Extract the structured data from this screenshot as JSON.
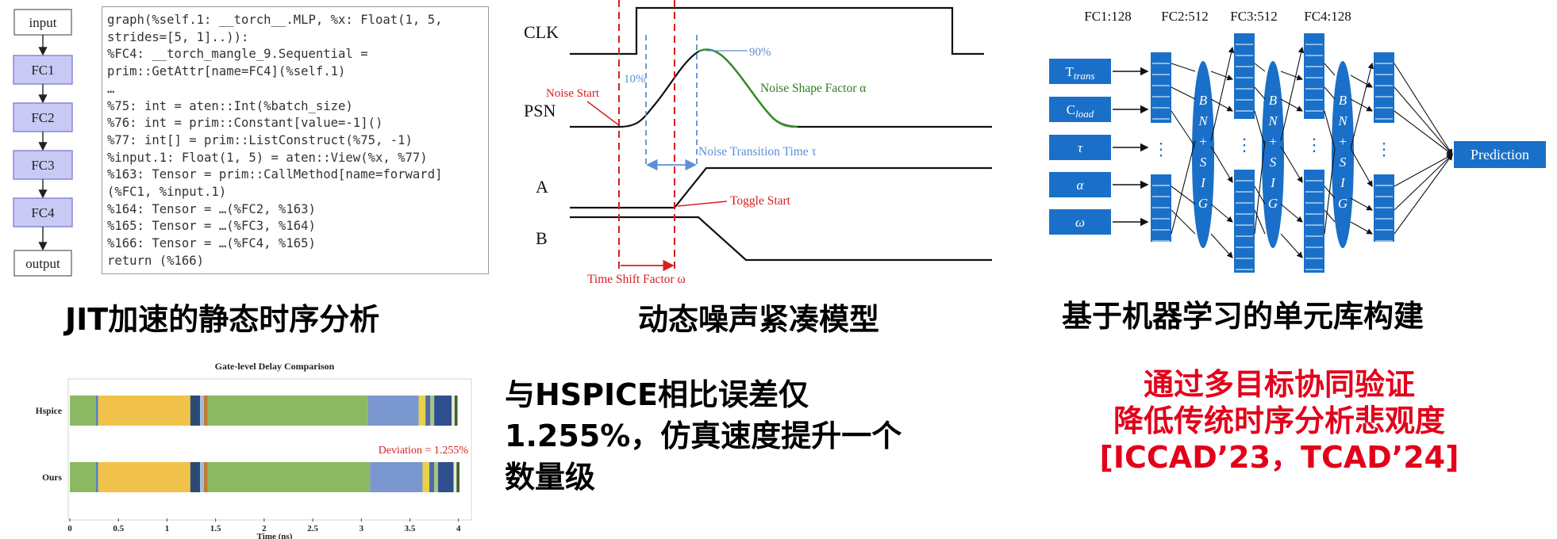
{
  "panel_jit": {
    "flow": [
      "input",
      "FC1",
      "FC2",
      "FC3",
      "FC4",
      "output"
    ],
    "code_lines": [
      "graph(%self.1: __torch__.MLP, %x: Float(1, 5,",
      "strides=[5, 1]..)):",
      "%FC4: __torch_mangle_9.Sequential =",
      "prim::GetAttr[name=FC4](%self.1)",
      "…",
      "%75: int = aten::Int(%batch_size)",
      "%76: int = prim::Constant[value=-1]()",
      "%77: int[] = prim::ListConstruct(%75, -1)",
      "%input.1: Float(1, 5) = aten::View(%x, %77)",
      "%163: Tensor = prim::CallMethod[name=forward]",
      "(%FC1, %input.1)",
      "%164: Tensor = …(%FC2, %163)",
      "%165: Tensor = …(%FC3, %164)",
      "%166: Tensor = …(%FC4, %165)",
      "return (%166)"
    ],
    "caption": "JIT加速的静态时序分析"
  },
  "panel_noise": {
    "labels": {
      "clk": "CLK",
      "psn": "PSN",
      "a": "A",
      "b": "B",
      "noise_start": "Noise Start",
      "pct10": "10%",
      "pct90": "90%",
      "shape_factor": "Noise Shape Factor α",
      "transition_time": "Noise Transition Time τ",
      "toggle_start": "Toggle Start",
      "time_shift": "Time Shift Factor ω"
    },
    "caption": "动态噪声紧凑模型"
  },
  "panel_nn": {
    "layer_headers": [
      "FC1:128",
      "FC2:512",
      "FC3:512",
      "FC4:128"
    ],
    "bn_label": [
      "B",
      "N",
      "+",
      "S",
      "I",
      "G"
    ],
    "output_label": "Prediction",
    "caption": "基于机器学习的单元库构建"
  },
  "chart_data": {
    "type": "bar",
    "orientation": "horizontal-stacked",
    "title": "Gate-level Delay Comparison",
    "xlabel": "Time (ns)",
    "ylabel": "",
    "xlim": [
      0,
      4.1
    ],
    "x_ticks": [
      "0",
      "0.5",
      "1",
      "1.5",
      "2",
      "2.5",
      "3",
      "3.5",
      "4"
    ],
    "categories": [
      "Hspice",
      "Ours"
    ],
    "series": [
      {
        "color": "#8db863",
        "values": [
          0.27,
          0.27
        ]
      },
      {
        "color": "#4f7fbf",
        "values": [
          0.02,
          0.02
        ]
      },
      {
        "color": "#f0c24a",
        "values": [
          0.95,
          0.95
        ]
      },
      {
        "color": "#2d4a73",
        "values": [
          0.1,
          0.1
        ]
      },
      {
        "color": "#9fbde0",
        "values": [
          0.04,
          0.04
        ]
      },
      {
        "color": "#c07a33",
        "values": [
          0.04,
          0.04
        ]
      },
      {
        "color": "#8db863",
        "values": [
          1.65,
          1.67
        ]
      },
      {
        "color": "#7b97cf",
        "values": [
          0.52,
          0.54
        ]
      },
      {
        "color": "#e8d24a",
        "values": [
          0.07,
          0.07
        ]
      },
      {
        "color": "#4e6ba8",
        "values": [
          0.05,
          0.05
        ]
      },
      {
        "color": "#a8c47a",
        "values": [
          0.04,
          0.04
        ]
      },
      {
        "color": "#2f4f8f",
        "values": [
          0.18,
          0.16
        ]
      },
      {
        "color": "#e9ecc8",
        "values": [
          0.03,
          0.03
        ]
      },
      {
        "color": "#3f5f3a",
        "values": [
          0.03,
          0.03
        ]
      }
    ],
    "annotation": "Deviation = 1.255%"
  },
  "result_text": {
    "lines": [
      "与HSPICE相比误差仅",
      "1.255%，仿真速度提升一个",
      "数量级"
    ]
  },
  "conclusion_text": {
    "lines": [
      "通过多目标协同验证",
      "降低传统时序分析悲观度",
      "[ICCAD’23，TCAD’24]"
    ]
  }
}
